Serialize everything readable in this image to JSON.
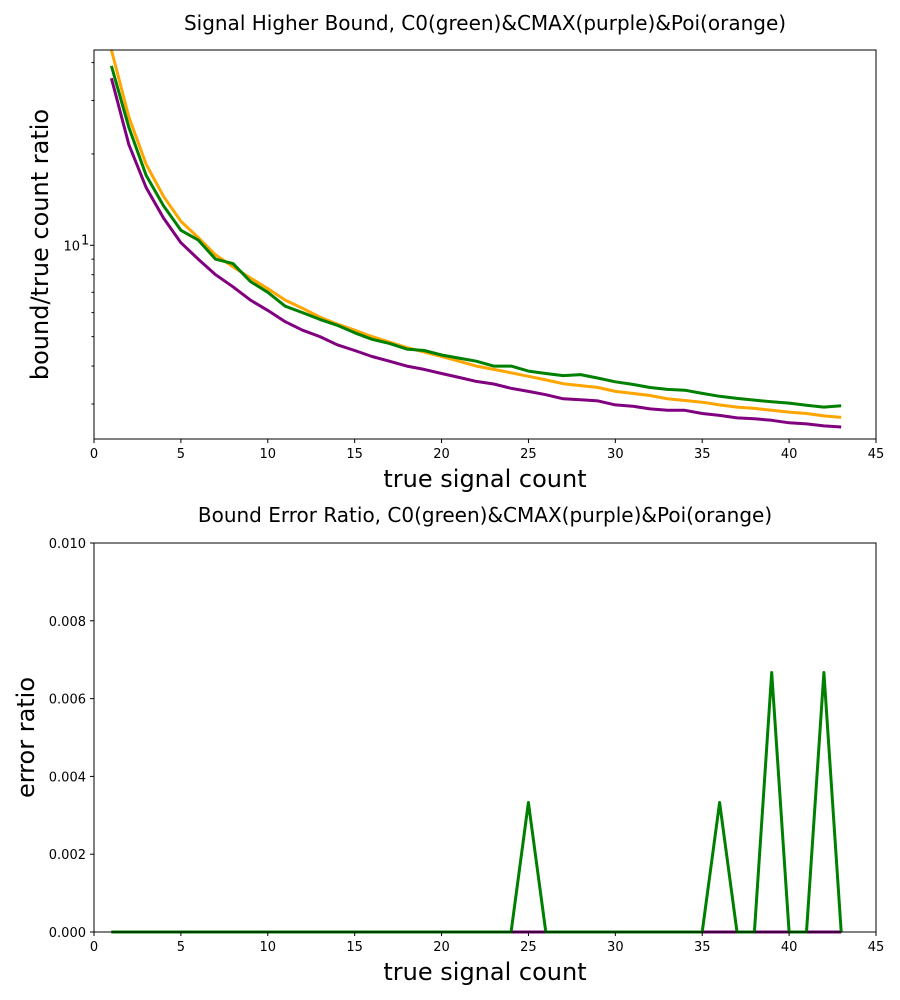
{
  "chart_data": [
    {
      "type": "line",
      "title": "Signal Higher Bound, C0(green)&CMAX(purple)&Poi(orange)",
      "xlabel": "true signal count",
      "ylabel": "bound/true count ratio",
      "xlim": [
        0,
        45
      ],
      "ylim": [
        2.3,
        44
      ],
      "yscale": "log",
      "xticks": [
        "0",
        "5",
        "10",
        "15",
        "20",
        "25",
        "30",
        "35",
        "40",
        "45"
      ],
      "yticks": [
        {
          "value": 10,
          "base": "10",
          "exp": "1"
        }
      ],
      "grid": false,
      "x": [
        1,
        2,
        3,
        4,
        5,
        6,
        7,
        8,
        9,
        10,
        11,
        12,
        13,
        14,
        15,
        16,
        17,
        18,
        19,
        20,
        21,
        22,
        23,
        24,
        25,
        26,
        27,
        28,
        29,
        30,
        31,
        32,
        33,
        34,
        35,
        36,
        37,
        38,
        39,
        40,
        41,
        42,
        43
      ],
      "series": [
        {
          "color": "#ffa500",
          "values": [
            44.0,
            26.5,
            18.5,
            14.5,
            12.0,
            10.6,
            9.3,
            8.5,
            7.8,
            7.2,
            6.6,
            6.2,
            5.8,
            5.5,
            5.25,
            5.0,
            4.8,
            4.6,
            4.45,
            4.3,
            4.15,
            4.0,
            3.9,
            3.8,
            3.7,
            3.6,
            3.5,
            3.45,
            3.4,
            3.3,
            3.25,
            3.2,
            3.12,
            3.08,
            3.04,
            2.98,
            2.93,
            2.9,
            2.86,
            2.82,
            2.79,
            2.74,
            2.71
          ]
        },
        {
          "color": "#008000",
          "values": [
            39.0,
            24.5,
            17.0,
            13.5,
            11.2,
            10.4,
            9.0,
            8.7,
            7.6,
            7.0,
            6.3,
            6.0,
            5.7,
            5.45,
            5.15,
            4.9,
            4.75,
            4.55,
            4.5,
            4.35,
            4.25,
            4.15,
            4.0,
            4.0,
            3.85,
            3.78,
            3.72,
            3.75,
            3.65,
            3.55,
            3.48,
            3.4,
            3.35,
            3.33,
            3.25,
            3.18,
            3.13,
            3.09,
            3.05,
            3.02,
            2.97,
            2.93,
            2.96
          ]
        },
        {
          "color": "#800080",
          "values": [
            35.5,
            21.5,
            15.5,
            12.3,
            10.2,
            9.0,
            8.0,
            7.3,
            6.6,
            6.1,
            5.6,
            5.25,
            5.0,
            4.7,
            4.5,
            4.3,
            4.15,
            4.0,
            3.9,
            3.78,
            3.67,
            3.56,
            3.49,
            3.38,
            3.3,
            3.22,
            3.12,
            3.1,
            3.07,
            2.98,
            2.95,
            2.89,
            2.86,
            2.86,
            2.79,
            2.75,
            2.7,
            2.68,
            2.65,
            2.6,
            2.58,
            2.54,
            2.52
          ]
        }
      ]
    },
    {
      "type": "line",
      "title": "Bound Error Ratio, C0(green)&CMAX(purple)&Poi(orange)",
      "xlabel": "true signal count",
      "ylabel": "error ratio",
      "xlim": [
        0,
        45
      ],
      "ylim": [
        0,
        0.01
      ],
      "xticks": [
        "0",
        "5",
        "10",
        "15",
        "20",
        "25",
        "30",
        "35",
        "40",
        "45"
      ],
      "yticks": [
        "0.000",
        "0.002",
        "0.004",
        "0.006",
        "0.008",
        "0.010"
      ],
      "grid": false,
      "x": [
        1,
        2,
        3,
        4,
        5,
        6,
        7,
        8,
        9,
        10,
        11,
        12,
        13,
        14,
        15,
        16,
        17,
        18,
        19,
        20,
        21,
        22,
        23,
        24,
        25,
        26,
        27,
        28,
        29,
        30,
        31,
        32,
        33,
        34,
        35,
        36,
        37,
        38,
        39,
        40,
        41,
        42,
        43
      ],
      "series": [
        {
          "color": "#ffa500",
          "values": [
            0,
            0,
            0,
            0,
            0,
            0,
            0,
            0,
            0,
            0,
            0,
            0,
            0,
            0,
            0,
            0,
            0,
            0,
            0,
            0,
            0,
            0,
            0,
            0,
            0,
            0,
            0,
            0,
            0,
            0,
            0,
            0,
            0,
            0,
            0,
            0,
            0,
            0,
            0,
            0,
            0,
            0,
            0
          ]
        },
        {
          "color": "#800080",
          "values": [
            0,
            0,
            0,
            0,
            0,
            0,
            0,
            0,
            0,
            0,
            0,
            0,
            0,
            0,
            0,
            0,
            0,
            0,
            0,
            0,
            0,
            0,
            0,
            0,
            0,
            0,
            0,
            0,
            0,
            0,
            0,
            0,
            0,
            0,
            0,
            0,
            0,
            0,
            0,
            0,
            0,
            0,
            0
          ]
        },
        {
          "color": "#008000",
          "values": [
            0,
            0,
            0,
            0,
            0,
            0,
            0,
            0,
            0,
            0,
            0,
            0,
            0,
            0,
            0,
            0,
            0,
            0,
            0,
            0,
            0,
            0,
            0,
            0,
            0.00333,
            0,
            0,
            0,
            0,
            0,
            0,
            0,
            0,
            0,
            0,
            0.00333,
            0,
            0,
            0.00667,
            0,
            0,
            0.00667,
            0
          ]
        }
      ]
    }
  ]
}
